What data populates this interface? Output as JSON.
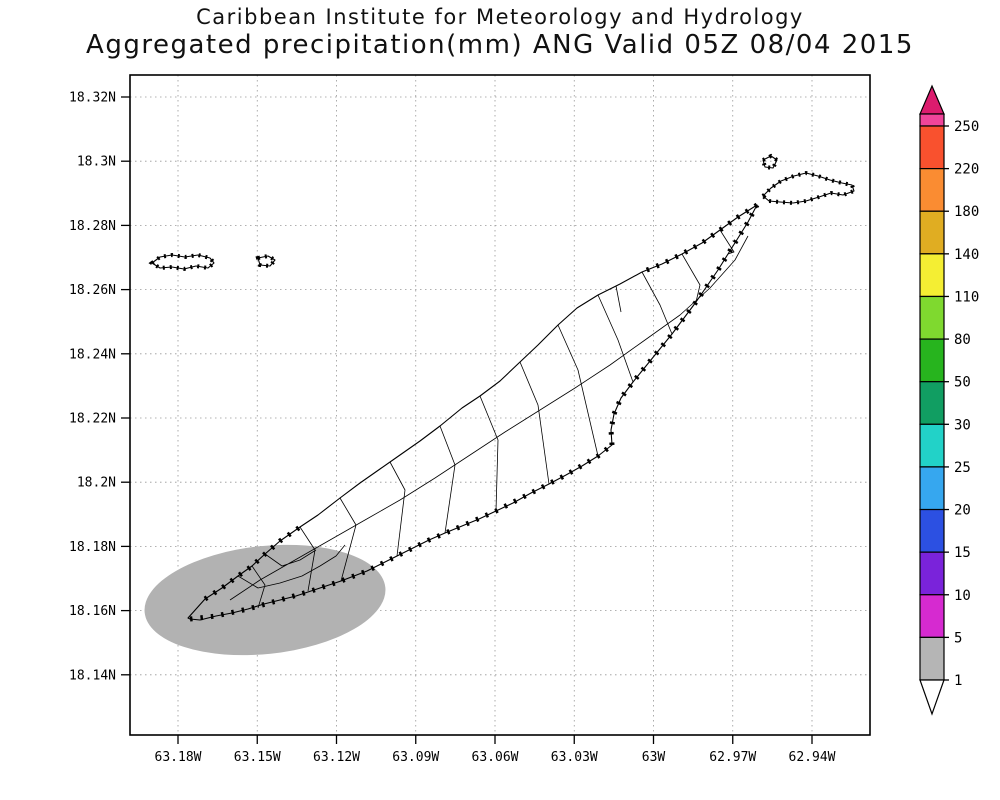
{
  "header": {
    "line1": "Caribbean Institute for Meteorology and Hydrology",
    "line2": "Aggregated precipitation(mm) ANG Valid 05Z 08/04 2015"
  },
  "map": {
    "lat_ticks": [
      "18.32N",
      "18.3N",
      "18.28N",
      "18.26N",
      "18.24N",
      "18.22N",
      "18.2N",
      "18.18N",
      "18.16N",
      "18.14N"
    ],
    "lon_ticks": [
      "63.18W",
      "63.15W",
      "63.12W",
      "63.09W",
      "63.06W",
      "63.03W",
      "63W",
      "62.97W",
      "62.94W"
    ]
  },
  "shading": {
    "color": "#b2b2b2"
  },
  "colorbar": {
    "arrow_top_color": "#dc1c6e",
    "arrow_bottom_color": "#ffffff",
    "segments": [
      {
        "label": "250",
        "color": "#f0459a"
      },
      {
        "label": "220",
        "color": "#f9512e"
      },
      {
        "label": "180",
        "color": "#fa8c32"
      },
      {
        "label": "140",
        "color": "#e0ad22"
      },
      {
        "label": "110",
        "color": "#f4ee33"
      },
      {
        "label": "80",
        "color": "#7fd92f"
      },
      {
        "label": "50",
        "color": "#27b41e"
      },
      {
        "label": "30",
        "color": "#119e62"
      },
      {
        "label": "25",
        "color": "#22d2c8"
      },
      {
        "label": "20",
        "color": "#36a7ef"
      },
      {
        "label": "15",
        "color": "#2c50e2"
      },
      {
        "label": "10",
        "color": "#7a23da"
      },
      {
        "label": "5",
        "color": "#d62ad0"
      },
      {
        "label": "1",
        "color": "#b5b5b5"
      }
    ]
  }
}
